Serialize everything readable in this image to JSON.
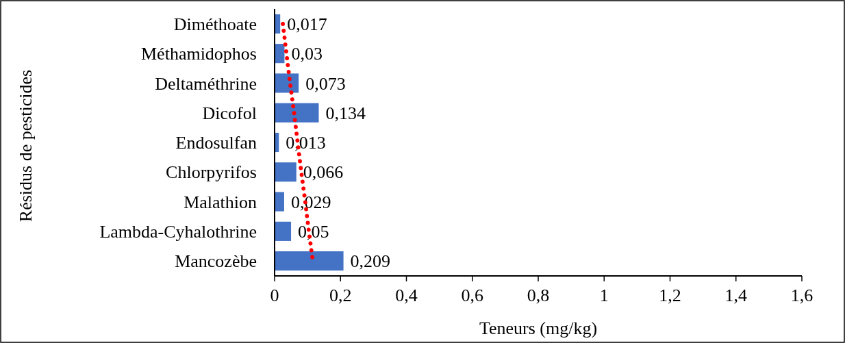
{
  "chart_data": {
    "type": "bar",
    "orientation": "horizontal",
    "xlabel": "Teneurs (mg/kg)",
    "ylabel": "Résidus de pesticides",
    "categories": [
      "Diméthoate",
      "Méthamidophos",
      "Deltaméthrine",
      "Dicofol",
      "Endosulfan",
      "Chlorpyrifos",
      "Malathion",
      "Lambda-Cyhalothrine",
      "Mancozèbe"
    ],
    "series": [
      {
        "color": "#4472c4",
        "values": [
          0.017,
          0.03,
          0.073,
          0.134,
          0.013,
          0.066,
          0.029,
          0.05,
          0.209
        ],
        "value_labels": [
          "0,017",
          "0,03",
          "0,073",
          "0,134",
          "0,013",
          "0,066",
          "0,029",
          "0,05",
          "0,209"
        ]
      },
      {
        "type": "line",
        "color": "#ff0000",
        "line_style": "dotted",
        "values": [
          0.025,
          0.036,
          0.047,
          0.059,
          0.07,
          0.081,
          0.093,
          0.104,
          0.116
        ]
      }
    ],
    "xlim": [
      0,
      1.6
    ],
    "xticks": [
      0,
      {
        "value": 0.2,
        "label": "0,2"
      },
      {
        "value": 0.4,
        "label": "0,4"
      },
      {
        "value": 0.6,
        "label": "0,6"
      },
      {
        "value": 0.8,
        "label": "0,8"
      },
      1,
      {
        "value": 1.2,
        "label": "1,2"
      },
      {
        "value": 1.4,
        "label": "1,4"
      },
      {
        "value": 1.6,
        "label": "1,6"
      }
    ],
    "grid": false
  }
}
